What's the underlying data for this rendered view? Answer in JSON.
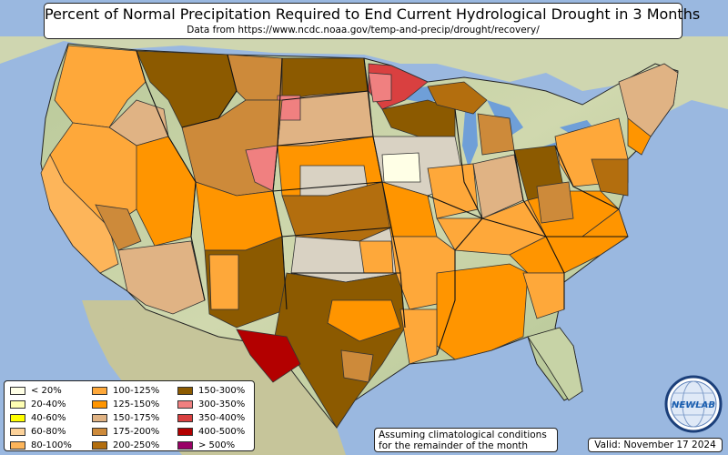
{
  "header": {
    "title": "Percent of Normal Precipitation Required to End Current Hydrological Drought in 3 Months",
    "source": "Data from https://www.ncdc.noaa.gov/temp-and-precip/drought/recovery/"
  },
  "legend": {
    "items": [
      {
        "label": "< 20%",
        "color": "#ffffe6"
      },
      {
        "label": "20-40%",
        "color": "#ffffb3"
      },
      {
        "label": "40-60%",
        "color": "#ffff00"
      },
      {
        "label": "60-80%",
        "color": "#fcd29a"
      },
      {
        "label": "80-100%",
        "color": "#fdb55a"
      },
      {
        "label": "100-125%",
        "color": "#fea83a"
      },
      {
        "label": "125-150%",
        "color": "#ff9500"
      },
      {
        "label": "150-175%",
        "color": "#e0b384"
      },
      {
        "label": "175-200%",
        "color": "#cd8a3a"
      },
      {
        "label": "200-250%",
        "color": "#b36e0e"
      },
      {
        "label": "150-300%",
        "color": "#8c5a00"
      },
      {
        "label": "300-350%",
        "color": "#f08080"
      },
      {
        "label": "350-400%",
        "color": "#d94040"
      },
      {
        "label": "400-500%",
        "color": "#b30000"
      },
      {
        "label": "> 500%",
        "color": "#990066"
      }
    ]
  },
  "note": {
    "line1": "Assuming climatological conditions",
    "line2": "for the remainder of the month"
  },
  "valid": "Valid: November 17 2024",
  "logo": {
    "text": "NEWLAB",
    "icon": "globe-logo-icon"
  },
  "colors": {
    "ocean": "#9ab8e0",
    "land_terrain": "#c9d6a8",
    "land_other": "#d9d2c3",
    "great_lakes": "#6f9fd8"
  }
}
